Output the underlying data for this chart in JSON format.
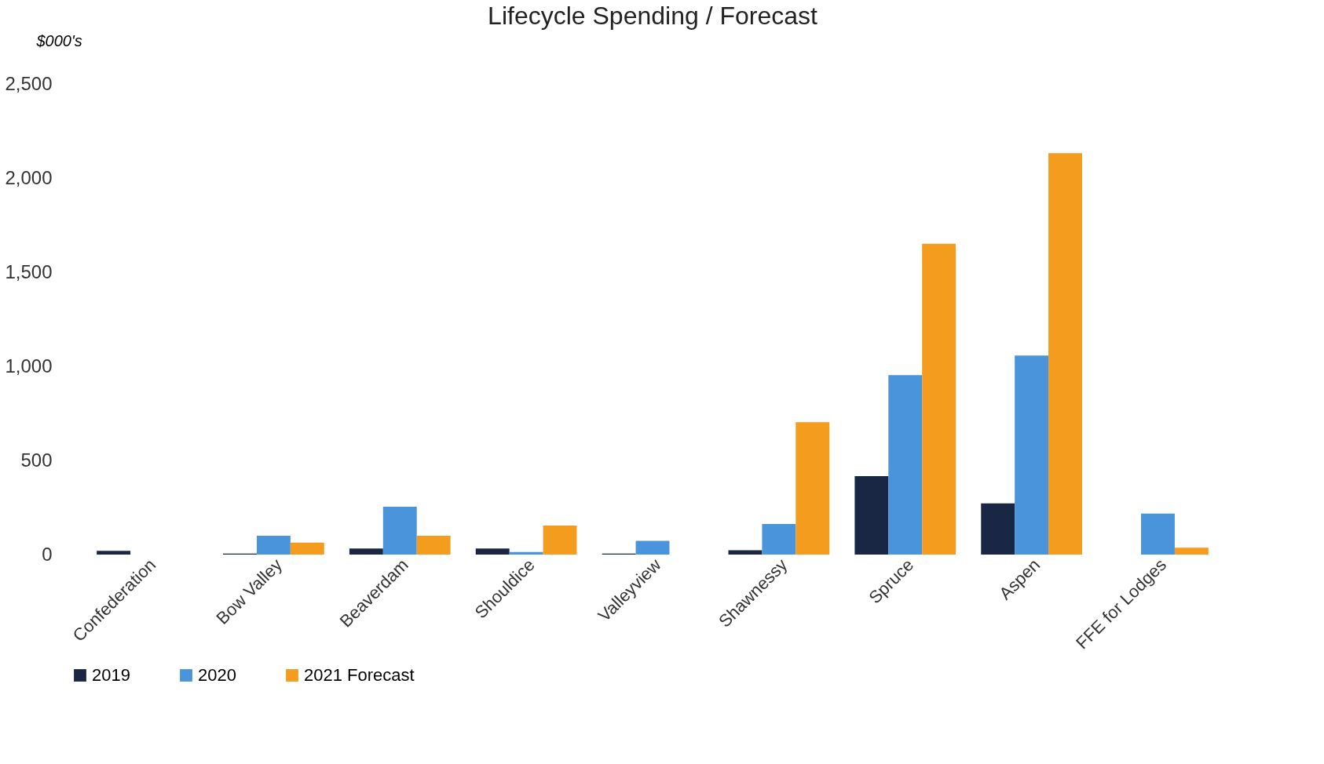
{
  "chart_data": {
    "type": "bar",
    "title": "Lifecycle Spending / Forecast",
    "ylabel": "$000's",
    "categories": [
      "Confederation",
      "Bow Valley",
      "Beaverdam",
      "Shouldice",
      "Valleyview",
      "Shawnessy",
      "Spruce",
      "Aspen",
      "FFE for Lodges"
    ],
    "series": [
      {
        "name": "2019",
        "color": "#1a2744",
        "values": [
          20,
          5,
          32,
          32,
          5,
          23,
          417,
          272,
          null
        ]
      },
      {
        "name": "2020",
        "color": "#4a94db",
        "values": [
          null,
          100,
          254,
          14,
          73,
          163,
          953,
          1057,
          218
        ]
      },
      {
        "name": "2021 Forecast",
        "color": "#f39c1d",
        "values": [
          null,
          64,
          100,
          154,
          null,
          703,
          1651,
          2132,
          36
        ]
      }
    ],
    "ylim": [
      0,
      2500
    ],
    "yticks": [
      0,
      {
        "value": 500,
        "label": "500"
      },
      {
        "value": 1000,
        "label": "1,000"
      },
      {
        "value": 1500,
        "label": "1,500"
      },
      {
        "value": 2000,
        "label": "2,000"
      },
      {
        "value": 2500,
        "label": "2,500"
      }
    ],
    "grid": false,
    "legend": "bottom"
  }
}
